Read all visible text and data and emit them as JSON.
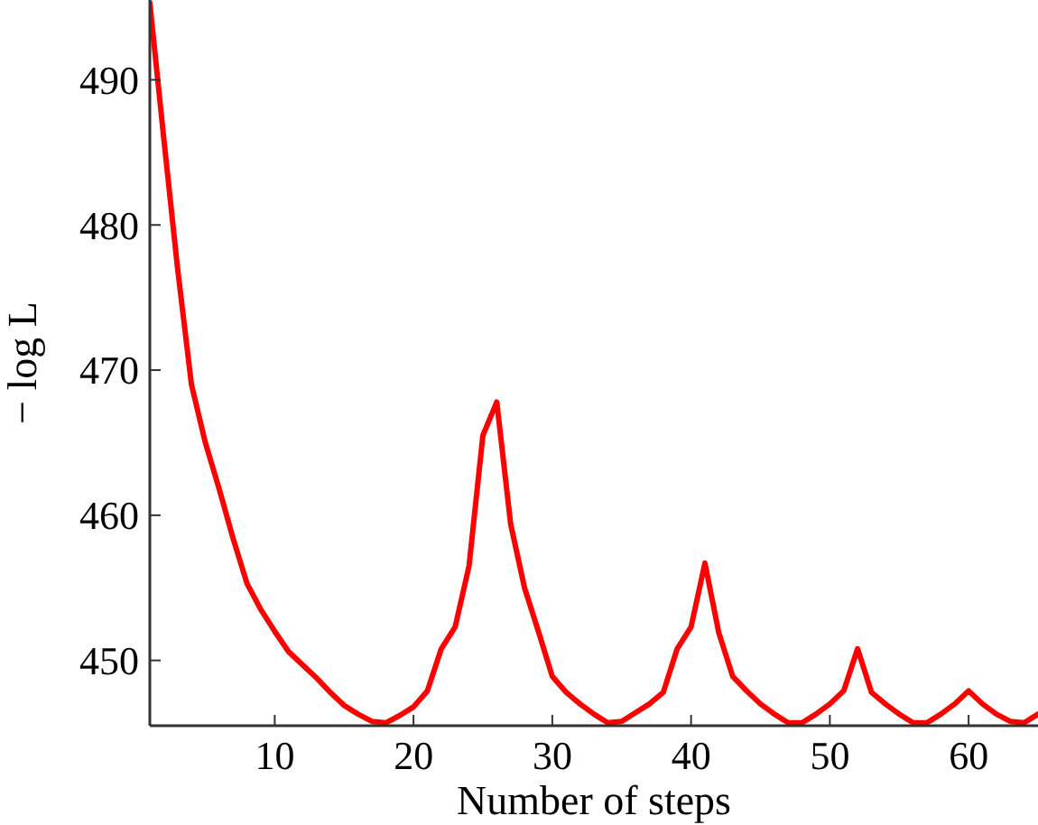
{
  "chart_data": {
    "type": "line",
    "xlabel": "Number of steps",
    "ylabel": "− log L",
    "xlim": [
      1,
      65
    ],
    "ylim": [
      445.5,
      495.5
    ],
    "xticks": [
      10,
      20,
      30,
      40,
      50,
      60
    ],
    "yticks": [
      450,
      460,
      470,
      480,
      490
    ],
    "grid": false,
    "marker": "none",
    "line_style": "solid",
    "x": [
      1,
      2,
      3,
      4,
      5,
      6,
      7,
      8,
      9,
      10,
      11,
      12,
      13,
      14,
      15,
      16,
      17,
      18,
      19,
      20,
      21,
      22,
      23,
      24,
      25,
      26,
      27,
      28,
      29,
      30,
      31,
      32,
      33,
      34,
      35,
      36,
      37,
      38,
      39,
      40,
      41,
      42,
      43,
      44,
      45,
      46,
      47,
      48,
      49,
      50,
      51,
      52,
      53,
      54,
      55,
      56,
      57,
      58,
      59,
      60,
      61,
      62,
      63,
      64,
      65
    ],
    "series": [
      {
        "color": "#ff0000",
        "values": [
          495.3,
          486,
          477,
          469,
          465,
          461.8,
          458.4,
          455.3,
          453.5,
          452,
          450.6,
          449.7,
          448.8,
          447.8,
          446.9,
          446.3,
          445.8,
          445.7,
          446.2,
          446.8,
          447.9,
          450.8,
          452.3,
          456.5,
          465.5,
          467.8,
          459.4,
          455,
          452,
          448.9,
          447.8,
          447,
          446.3,
          445.7,
          445.8,
          446.4,
          447,
          447.8,
          450.8,
          452.3,
          456.7,
          451.9,
          448.9,
          447.9,
          447,
          446.3,
          445.7,
          445.7,
          446.3,
          447,
          447.9,
          450.8,
          447.8,
          447,
          446.3,
          445.7,
          445.7,
          446.3,
          447,
          447.9,
          447,
          446.3,
          445.8,
          445.7,
          446.3
        ]
      }
    ]
  }
}
